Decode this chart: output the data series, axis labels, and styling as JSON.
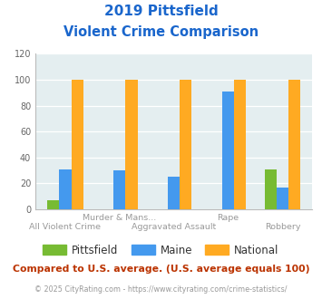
{
  "title_line1": "2019 Pittsfield",
  "title_line2": "Violent Crime Comparison",
  "cat_labels_row1": [
    "",
    "Murder & Mans...",
    "",
    "Rape",
    ""
  ],
  "cat_labels_row2": [
    "All Violent Crime",
    "",
    "Aggravated Assault",
    "",
    "Robbery"
  ],
  "pittsfield": [
    7,
    0,
    0,
    0,
    31
  ],
  "maine": [
    31,
    30,
    25,
    91,
    17
  ],
  "national": [
    100,
    100,
    100,
    100,
    100
  ],
  "color_pittsfield": "#77bb33",
  "color_maine": "#4499ee",
  "color_national": "#ffaa22",
  "ylim": [
    0,
    120
  ],
  "yticks": [
    0,
    20,
    40,
    60,
    80,
    100,
    120
  ],
  "bg_color": "#e4eef0",
  "footnote": "Compared to U.S. average. (U.S. average equals 100)",
  "copyright": "© 2025 CityRating.com - https://www.cityrating.com/crime-statistics/",
  "title_color": "#1a66cc",
  "footnote_color": "#bb3300",
  "copyright_color": "#999999"
}
